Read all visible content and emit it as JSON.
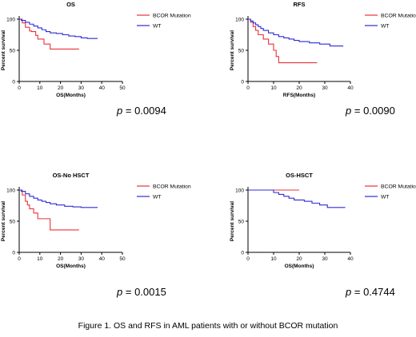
{
  "caption": "Figure 1. OS and RFS in AML patients with or without BCOR mutation",
  "colors": {
    "mutation": "#e8333a",
    "wt": "#2b2bd6",
    "axis": "#000000"
  },
  "chart_data": [
    {
      "type": "line",
      "title": "OS",
      "xlabel": "OS(Months)",
      "ylabel": "Percent survival",
      "xlim": [
        0,
        50
      ],
      "ylim": [
        0,
        100
      ],
      "xticks": [
        0,
        10,
        20,
        30,
        40,
        50
      ],
      "yticks": [
        0,
        50,
        100
      ],
      "legend_position": "top-right",
      "p_prefix": "p",
      "p_value": "= 0.0094",
      "series": [
        {
          "name": "BCOR Mutation",
          "color": "#e8333a",
          "x": [
            0,
            1.5,
            3,
            5,
            6,
            8,
            9,
            12,
            15,
            29
          ],
          "y": [
            100,
            94,
            87,
            81,
            80,
            74,
            68,
            60,
            52,
            52
          ]
        },
        {
          "name": "WT",
          "color": "#2b2bd6",
          "x": [
            0,
            1,
            3,
            5,
            7,
            9,
            11,
            13,
            15,
            18,
            21,
            24,
            27,
            30,
            33,
            38
          ],
          "y": [
            100,
            98,
            95,
            92,
            89,
            86,
            83,
            80,
            78,
            77,
            75,
            73,
            72,
            70,
            69,
            69
          ]
        }
      ]
    },
    {
      "type": "line",
      "title": "RFS",
      "xlabel": "RFS(Months)",
      "ylabel": "Percent survival",
      "xlim": [
        0,
        40
      ],
      "ylim": [
        0,
        100
      ],
      "xticks": [
        0,
        10,
        20,
        30,
        40
      ],
      "yticks": [
        0,
        50,
        100
      ],
      "legend_position": "top-right",
      "p_prefix": "p",
      "p_value": "= 0.0090",
      "series": [
        {
          "name": "BCOR Mutation",
          "color": "#e8333a",
          "x": [
            0,
            1,
            2,
            3,
            4,
            6,
            8,
            10,
            11,
            12,
            27
          ],
          "y": [
            100,
            95,
            88,
            82,
            75,
            68,
            60,
            50,
            40,
            30,
            30
          ]
        },
        {
          "name": "WT",
          "color": "#2b2bd6",
          "x": [
            0,
            1,
            2,
            3,
            4,
            5,
            6,
            8,
            10,
            12,
            14,
            16,
            18,
            20,
            24,
            28,
            32,
            37
          ],
          "y": [
            100,
            97,
            94,
            91,
            88,
            85,
            82,
            78,
            75,
            72,
            70,
            68,
            66,
            64,
            62,
            60,
            57,
            56
          ]
        }
      ]
    },
    {
      "type": "line",
      "title": "OS-No HSCT",
      "xlabel": "OS(Months)",
      "ylabel": "Percent survival",
      "xlim": [
        0,
        50
      ],
      "ylim": [
        0,
        100
      ],
      "xticks": [
        0,
        10,
        20,
        30,
        40,
        50
      ],
      "yticks": [
        0,
        50,
        100
      ],
      "legend_position": "top-right",
      "p_prefix": "p",
      "p_value": "= 0.0015",
      "series": [
        {
          "name": "BCOR Mutation",
          "color": "#e8333a",
          "x": [
            0,
            1.5,
            3,
            4,
            5,
            7,
            9,
            15,
            29
          ],
          "y": [
            100,
            92,
            82,
            76,
            70,
            63,
            54,
            36,
            36
          ]
        },
        {
          "name": "WT",
          "color": "#2b2bd6",
          "x": [
            0,
            1,
            3,
            5,
            7,
            9,
            11,
            13,
            15,
            18,
            22,
            26,
            30,
            38
          ],
          "y": [
            100,
            98,
            94,
            90,
            87,
            84,
            82,
            80,
            78,
            76,
            74,
            73,
            72,
            72
          ]
        }
      ]
    },
    {
      "type": "line",
      "title": "OS-HSCT",
      "xlabel": "OS(Months)",
      "ylabel": "Percent survival",
      "xlim": [
        0,
        40
      ],
      "ylim": [
        0,
        100
      ],
      "xticks": [
        0,
        10,
        20,
        30,
        40
      ],
      "yticks": [
        0,
        50,
        100
      ],
      "legend_position": "top-right",
      "p_prefix": "p",
      "p_value": "= 0.4744",
      "series": [
        {
          "name": "BCOR Mutation",
          "color": "#e8333a",
          "x": [
            0,
            20
          ],
          "y": [
            100,
            100
          ]
        },
        {
          "name": "WT",
          "color": "#2b2bd6",
          "x": [
            0,
            7,
            10,
            12,
            14,
            16,
            18,
            22,
            25,
            28,
            31,
            38
          ],
          "y": [
            100,
            100,
            96,
            93,
            90,
            87,
            84,
            82,
            79,
            76,
            72,
            72
          ]
        }
      ]
    }
  ]
}
